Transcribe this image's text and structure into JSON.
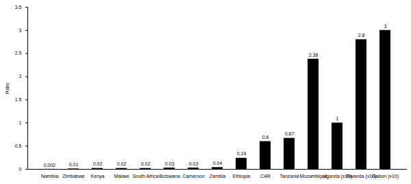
{
  "chart_data": {
    "type": "bar",
    "y_label": "Ratio",
    "categories": [
      "Namibia",
      "Zimbabwe",
      "Kenya",
      "Malawi",
      "South Africa",
      "Botswana",
      "Cameroon",
      "Zambia",
      "Ethiopia",
      "CAR",
      "Tanzania",
      "Mozambique",
      "Uganda (x10)",
      "Rwanda (x10)",
      "Gabon (x10)"
    ],
    "values": [
      0.002,
      0.01,
      0.02,
      0.02,
      0.02,
      0.03,
      0.03,
      0.04,
      0.24,
      0.6,
      0.67,
      2.38,
      1,
      2.8,
      3
    ],
    "color": "#000000",
    "ylim": [
      0,
      3.5
    ],
    "yticks": [
      0,
      0.5,
      1,
      1.5,
      2,
      2.5,
      3,
      3.5
    ],
    "grid": false,
    "data_labels": true
  }
}
